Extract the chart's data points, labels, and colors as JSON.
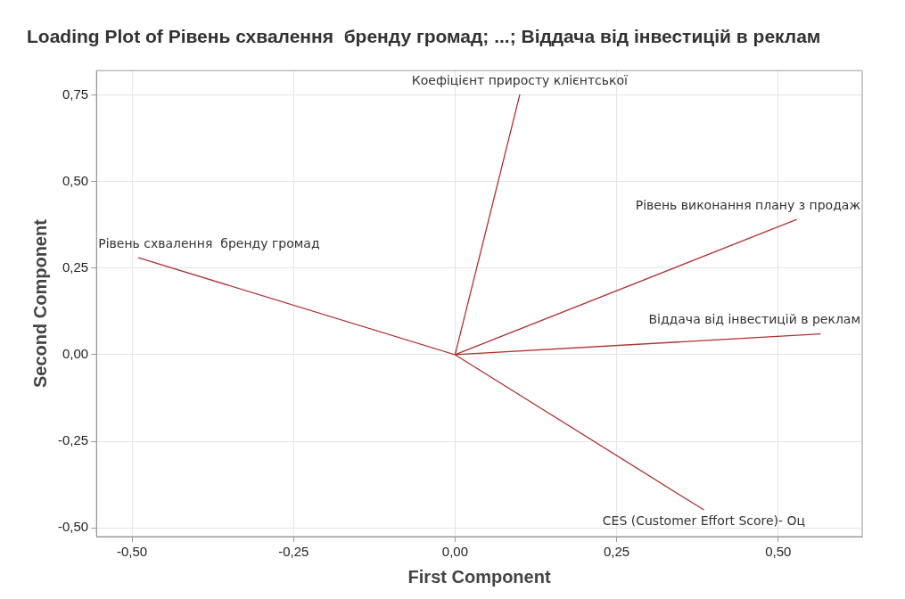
{
  "chart_data": {
    "type": "line",
    "title": "Loading Plot of Рівень схвалення  бренду громад; ...; Віддача від інвестицій в реклам",
    "xlabel": "First Component",
    "ylabel": "Second Component",
    "xlim": [
      -0.555,
      0.63
    ],
    "ylim": [
      -0.525,
      0.82
    ],
    "xticks": [
      {
        "value": -0.5,
        "label": "-0,50"
      },
      {
        "value": -0.25,
        "label": "-0,25"
      },
      {
        "value": 0,
        "label": "0,00"
      },
      {
        "value": 0.25,
        "label": "0,25"
      },
      {
        "value": 0.5,
        "label": "0,50"
      }
    ],
    "yticks": [
      {
        "value": -0.5,
        "label": "-0,50"
      },
      {
        "value": -0.25,
        "label": "-0,25"
      },
      {
        "value": 0,
        "label": "0,00"
      },
      {
        "value": 0.25,
        "label": "0,25"
      },
      {
        "value": 0.5,
        "label": "0,50"
      },
      {
        "value": 0.75,
        "label": "0,75"
      }
    ],
    "grid": true,
    "legend": false,
    "marker": "none",
    "line_style": "solid",
    "series": [
      {
        "color": "#b03030",
        "x": [
          0,
          -0.49,
          0,
          0.1,
          0,
          0.528,
          0,
          0.565,
          0,
          0.385
        ],
        "values": [
          0,
          0.28,
          0,
          0.75,
          0,
          0.39,
          0,
          0.06,
          0,
          -0.448
        ]
      }
    ],
    "annotations": [
      {
        "text": "Рівень схвалення  бренду громад",
        "x": -0.49,
        "y": 0.28
      },
      {
        "text": "Коефіцієнт приросту клієнтської",
        "x": 0.1,
        "y": 0.75
      },
      {
        "text": "Рівень виконання плану з продаж",
        "x": 0.528,
        "y": 0.39
      },
      {
        "text": "Віддача від інвестицій в реклам",
        "x": 0.565,
        "y": 0.06
      },
      {
        "text": "CES (Customer Effort Score)- Оц",
        "x": 0.385,
        "y": -0.448
      }
    ]
  }
}
